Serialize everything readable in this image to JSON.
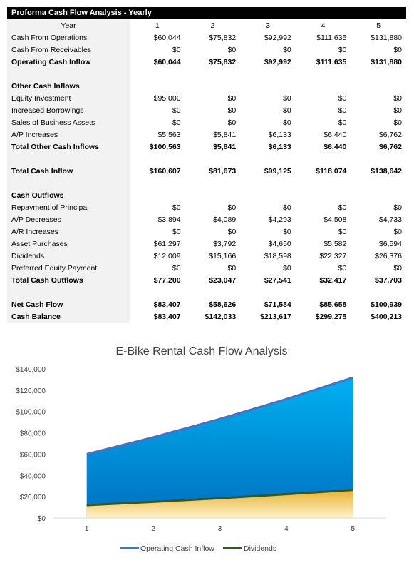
{
  "table": {
    "title": "Proforma Cash Flow Analysis - Yearly",
    "header": [
      "Year",
      "1",
      "2",
      "3",
      "4",
      "5"
    ],
    "rows": [
      {
        "label": "Cash From Operations",
        "values": [
          "$60,044",
          "$75,832",
          "$92,992",
          "$111,635",
          "$131,880"
        ],
        "bold": false
      },
      {
        "label": "Cash From Receivables",
        "values": [
          "$0",
          "$0",
          "$0",
          "$0",
          "$0"
        ],
        "bold": false
      },
      {
        "label": "Operating Cash Inflow",
        "values": [
          "$60,044",
          "$75,832",
          "$92,992",
          "$111,635",
          "$131,880"
        ],
        "bold": true
      },
      {
        "label": "",
        "values": [
          "",
          "",
          "",
          "",
          ""
        ],
        "bold": false
      },
      {
        "label": "Other Cash Inflows",
        "values": [
          "",
          "",
          "",
          "",
          ""
        ],
        "bold": true
      },
      {
        "label": "Equity Investment",
        "values": [
          "$95,000",
          "$0",
          "$0",
          "$0",
          "$0"
        ],
        "bold": false
      },
      {
        "label": "Increased Borrowings",
        "values": [
          "$0",
          "$0",
          "$0",
          "$0",
          "$0"
        ],
        "bold": false
      },
      {
        "label": "Sales of Business Assets",
        "values": [
          "$0",
          "$0",
          "$0",
          "$0",
          "$0"
        ],
        "bold": false
      },
      {
        "label": "A/P Increases",
        "values": [
          "$5,563",
          "$5,841",
          "$6,133",
          "$6,440",
          "$6,762"
        ],
        "bold": false
      },
      {
        "label": "Total Other Cash Inflows",
        "values": [
          "$100,563",
          "$5,841",
          "$6,133",
          "$6,440",
          "$6,762"
        ],
        "bold": true
      },
      {
        "label": "",
        "values": [
          "",
          "",
          "",
          "",
          ""
        ],
        "bold": false
      },
      {
        "label": "Total Cash Inflow",
        "values": [
          "$160,607",
          "$81,673",
          "$99,125",
          "$118,074",
          "$138,642"
        ],
        "bold": true
      },
      {
        "label": "",
        "values": [
          "",
          "",
          "",
          "",
          ""
        ],
        "bold": false
      },
      {
        "label": "Cash Outflows",
        "values": [
          "",
          "",
          "",
          "",
          ""
        ],
        "bold": true
      },
      {
        "label": "Repayment of Principal",
        "values": [
          "$0",
          "$0",
          "$0",
          "$0",
          "$0"
        ],
        "bold": false
      },
      {
        "label": "A/P Decreases",
        "values": [
          "$3,894",
          "$4,089",
          "$4,293",
          "$4,508",
          "$4,733"
        ],
        "bold": false
      },
      {
        "label": "A/R Increases",
        "values": [
          "$0",
          "$0",
          "$0",
          "$0",
          "$0"
        ],
        "bold": false
      },
      {
        "label": "Asset Purchases",
        "values": [
          "$61,297",
          "$3,792",
          "$4,650",
          "$5,582",
          "$6,594"
        ],
        "bold": false
      },
      {
        "label": "Dividends",
        "values": [
          "$12,009",
          "$15,166",
          "$18,598",
          "$22,327",
          "$26,376"
        ],
        "bold": false
      },
      {
        "label": "Preferred Equity Payment",
        "values": [
          "$0",
          "$0",
          "$0",
          "$0",
          "$0"
        ],
        "bold": false
      },
      {
        "label": "Total Cash Outflows",
        "values": [
          "$77,200",
          "$23,047",
          "$27,541",
          "$32,417",
          "$37,703"
        ],
        "bold": true
      },
      {
        "label": "",
        "values": [
          "",
          "",
          "",
          "",
          ""
        ],
        "bold": false
      },
      {
        "label": "Net Cash Flow",
        "values": [
          "$83,407",
          "$58,626",
          "$71,584",
          "$85,658",
          "$100,939"
        ],
        "bold": true
      },
      {
        "label": "Cash Balance",
        "values": [
          "$83,407",
          "$142,033",
          "$213,617",
          "$299,275",
          "$400,213"
        ],
        "bold": true
      }
    ]
  },
  "chart_data": {
    "type": "area",
    "title": "E-Bike Rental Cash Flow Analysis",
    "categories": [
      "1",
      "2",
      "3",
      "4",
      "5"
    ],
    "series": [
      {
        "name": "Operating Cash Inflow",
        "values": [
          60044,
          75832,
          92992,
          111635,
          131880
        ],
        "line_color": "#4472c4",
        "fill_top": "#00b0f0",
        "fill_bottom": "#0070c0"
      },
      {
        "name": "Dividends",
        "values": [
          12009,
          15166,
          18598,
          22327,
          26376
        ],
        "line_color": "#375623",
        "fill_top": "#e6b330",
        "fill_bottom": "#fff2cc"
      }
    ],
    "ylim": [
      0,
      140000
    ],
    "yticks": [
      0,
      20000,
      40000,
      60000,
      80000,
      100000,
      120000,
      140000
    ],
    "ytick_labels": [
      "$0",
      "$20,000",
      "$40,000",
      "$60,000",
      "$80,000",
      "$100,000",
      "$120,000",
      "$140,000"
    ],
    "xlabel": "",
    "ylabel": "",
    "grid": false,
    "legend": "bottom"
  }
}
